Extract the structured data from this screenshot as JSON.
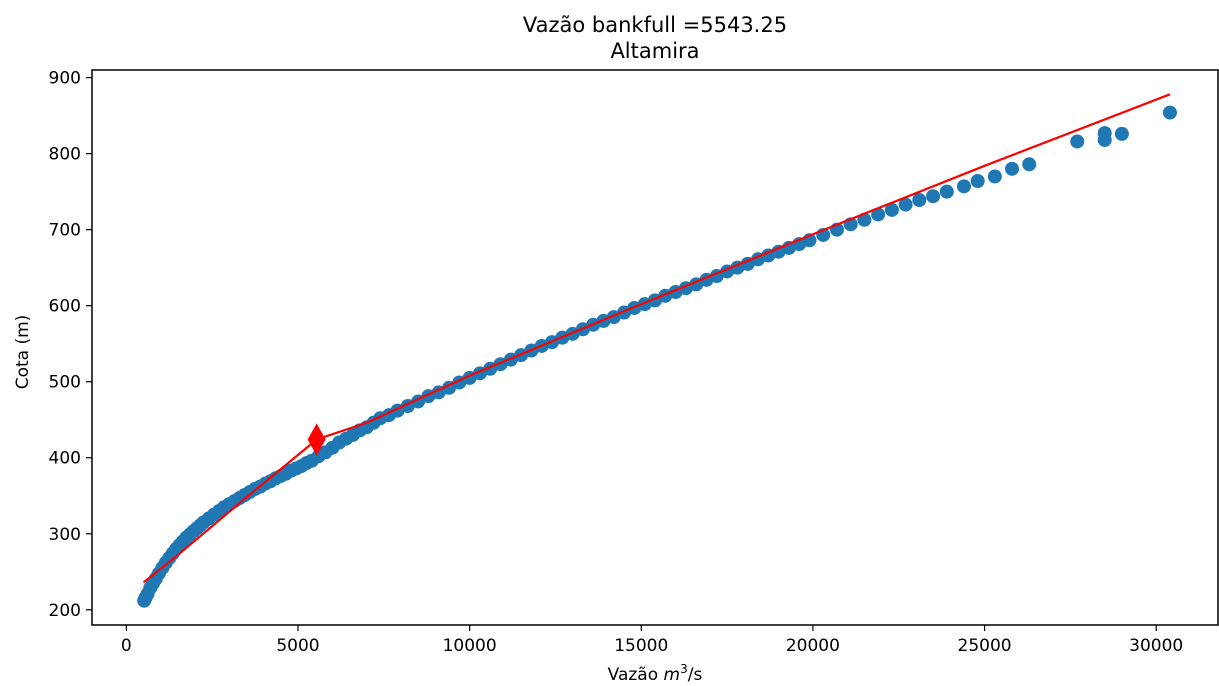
{
  "chart_data": {
    "type": "scatter",
    "title": "Vazão bankfull =5543.25",
    "subtitle": "Altamira",
    "xlabel_prefix": "Vazão ",
    "xlabel_math": "m",
    "xlabel_sup": "3",
    "xlabel_suffix": "/s",
    "ylabel": "Cota (m)",
    "xlim": [
      -1000,
      31800
    ],
    "ylim": [
      180,
      910
    ],
    "xticks": [
      0,
      5000,
      10000,
      15000,
      20000,
      25000,
      30000
    ],
    "yticks": [
      200,
      300,
      400,
      500,
      600,
      700,
      800,
      900
    ],
    "grid": false,
    "legend": "none",
    "colors": {
      "scatter": "#1f77b4",
      "fit": "#ff0000",
      "marker": "#ff0000"
    },
    "series": [
      {
        "type": "scatter",
        "points": [
          [
            520,
            212
          ],
          [
            560,
            216
          ],
          [
            620,
            221
          ],
          [
            700,
            229
          ],
          [
            780,
            235
          ],
          [
            860,
            241
          ],
          [
            950,
            248
          ],
          [
            1050,
            255
          ],
          [
            1150,
            262
          ],
          [
            1250,
            268
          ],
          [
            1350,
            274
          ],
          [
            1450,
            280
          ],
          [
            1550,
            285
          ],
          [
            1650,
            290
          ],
          [
            1750,
            295
          ],
          [
            1850,
            299
          ],
          [
            1950,
            303
          ],
          [
            2050,
            307
          ],
          [
            2150,
            311
          ],
          [
            2250,
            315
          ],
          [
            2400,
            320
          ],
          [
            2550,
            325
          ],
          [
            2700,
            330
          ],
          [
            2850,
            335
          ],
          [
            3000,
            339
          ],
          [
            3150,
            343
          ],
          [
            3300,
            347
          ],
          [
            3450,
            351
          ],
          [
            3600,
            355
          ],
          [
            3750,
            359
          ],
          [
            3900,
            362
          ],
          [
            4050,
            366
          ],
          [
            4200,
            369
          ],
          [
            4350,
            373
          ],
          [
            4500,
            376
          ],
          [
            4650,
            379
          ],
          [
            4800,
            383
          ],
          [
            4950,
            386
          ],
          [
            5100,
            389
          ],
          [
            5250,
            393
          ],
          [
            5400,
            396
          ],
          [
            5600,
            402
          ],
          [
            5800,
            407
          ],
          [
            6000,
            413
          ],
          [
            6200,
            420
          ],
          [
            6400,
            425
          ],
          [
            6600,
            430
          ],
          [
            6800,
            436
          ],
          [
            7000,
            440
          ],
          [
            7200,
            446
          ],
          [
            7400,
            452
          ],
          [
            7650,
            456
          ],
          [
            7900,
            462
          ],
          [
            8200,
            468
          ],
          [
            8500,
            474
          ],
          [
            8800,
            481
          ],
          [
            9100,
            486
          ],
          [
            9400,
            492
          ],
          [
            9700,
            499
          ],
          [
            10000,
            505
          ],
          [
            10300,
            511
          ],
          [
            10600,
            517
          ],
          [
            10900,
            523
          ],
          [
            11200,
            529
          ],
          [
            11500,
            535
          ],
          [
            11800,
            541
          ],
          [
            12100,
            547
          ],
          [
            12400,
            552
          ],
          [
            12700,
            558
          ],
          [
            13000,
            563
          ],
          [
            13300,
            569
          ],
          [
            13600,
            575
          ],
          [
            13900,
            580
          ],
          [
            14200,
            585
          ],
          [
            14500,
            591
          ],
          [
            14800,
            597
          ],
          [
            15100,
            602
          ],
          [
            15400,
            607
          ],
          [
            15700,
            613
          ],
          [
            16000,
            618
          ],
          [
            16300,
            623
          ],
          [
            16600,
            628
          ],
          [
            16900,
            634
          ],
          [
            17200,
            639
          ],
          [
            17500,
            645
          ],
          [
            17800,
            650
          ],
          [
            18100,
            655
          ],
          [
            18400,
            661
          ],
          [
            18700,
            666
          ],
          [
            19000,
            671
          ],
          [
            19300,
            676
          ],
          [
            19600,
            681
          ],
          [
            19900,
            686
          ],
          [
            20300,
            693
          ],
          [
            20700,
            700
          ],
          [
            21100,
            707
          ],
          [
            21500,
            713
          ],
          [
            21900,
            720
          ],
          [
            22300,
            726
          ],
          [
            22700,
            733
          ],
          [
            23100,
            739
          ],
          [
            23500,
            744
          ],
          [
            23900,
            750
          ],
          [
            24400,
            757
          ],
          [
            24800,
            764
          ],
          [
            25300,
            770
          ],
          [
            25800,
            780
          ],
          [
            26300,
            786
          ],
          [
            27700,
            816
          ],
          [
            28500,
            818
          ],
          [
            28500,
            827
          ],
          [
            29000,
            826
          ],
          [
            30400,
            854
          ]
        ]
      },
      {
        "type": "line",
        "points": [
          [
            500,
            236
          ],
          [
            1500,
            272
          ],
          [
            2500,
            310
          ],
          [
            3500,
            348
          ],
          [
            4500,
            385
          ],
          [
            5543.25,
            424
          ],
          [
            7000,
            446
          ],
          [
            10000,
            508
          ],
          [
            15000,
            602
          ],
          [
            20000,
            694
          ],
          [
            25000,
            784
          ],
          [
            30400,
            878
          ]
        ]
      },
      {
        "type": "marker",
        "points": [
          [
            5543.25,
            424
          ]
        ]
      }
    ]
  }
}
